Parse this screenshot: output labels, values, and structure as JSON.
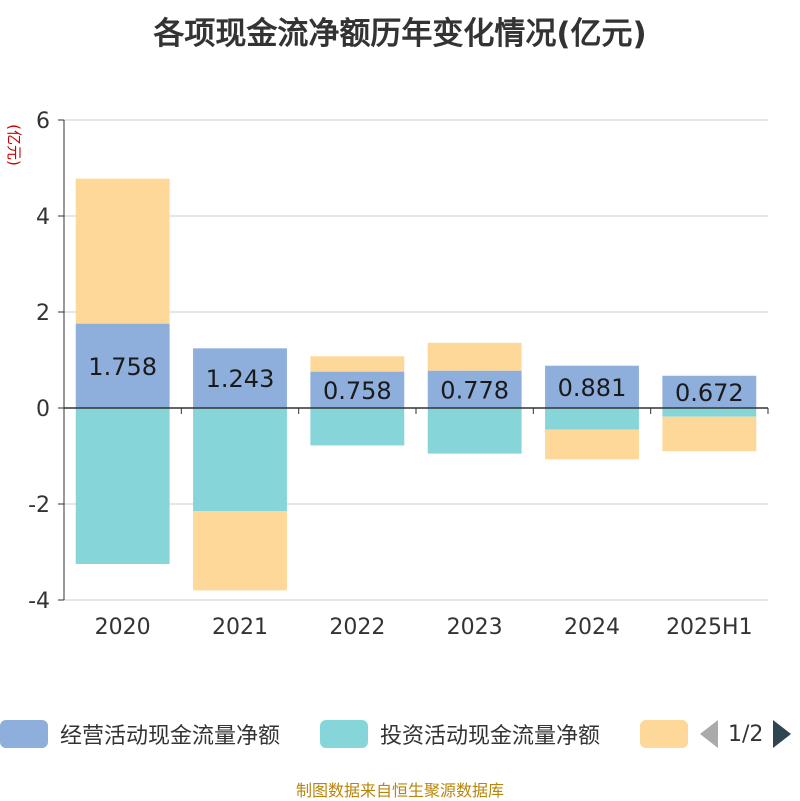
{
  "title": "各项现金流净额历年变化情况(亿元)",
  "source": "制图数据来自恒生聚源数据库",
  "pager": {
    "text": "1/2"
  },
  "colors": {
    "operating": "#8eaedc",
    "investing": "#86d6d9",
    "financing": "#fdd898",
    "grid": "#cccccc",
    "axis": "#333333",
    "ylabel": "#cc0000"
  },
  "chart_data": {
    "type": "bar",
    "stacked": true,
    "ylabel": "(亿元)",
    "ylim": [
      -4,
      6
    ],
    "yticks": [
      -4,
      -2,
      0,
      2,
      4,
      6
    ],
    "grid": true,
    "legend_position": "bottom",
    "categories": [
      "2020",
      "2021",
      "2022",
      "2023",
      "2024",
      "2025H1"
    ],
    "series": [
      {
        "name": "经营活动现金流量净额",
        "color": "#8eaedc",
        "values": [
          1.758,
          1.243,
          0.758,
          0.778,
          0.881,
          0.672
        ],
        "show_labels": true
      },
      {
        "name": "投资活动现金流量净额",
        "color": "#86d6d9",
        "values": [
          -3.25,
          -2.15,
          -0.78,
          -0.95,
          -0.45,
          -0.18
        ],
        "show_labels": false
      },
      {
        "name": "",
        "color": "#fdd898",
        "values": [
          3.02,
          -1.65,
          0.32,
          0.58,
          -0.62,
          -0.72
        ],
        "show_labels": false
      }
    ]
  }
}
